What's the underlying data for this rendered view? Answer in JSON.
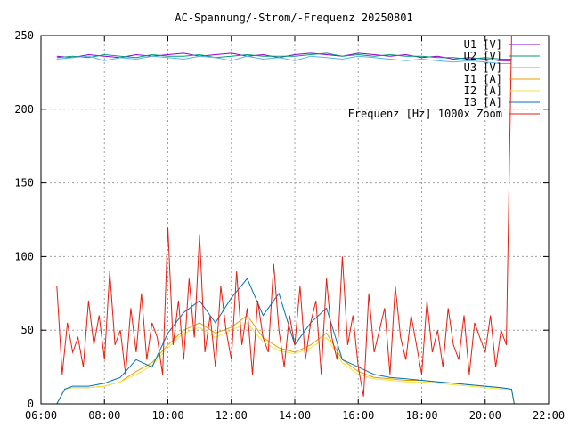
{
  "chart_data": {
    "type": "line",
    "title": "AC-Spannung/-Strom/-Frequenz 20250801",
    "xlabel": "",
    "ylabel": "",
    "xlim": [
      "06:00",
      "22:00"
    ],
    "ylim": [
      0,
      250
    ],
    "x_ticks": [
      "06:00",
      "08:00",
      "10:00",
      "12:00",
      "14:00",
      "16:00",
      "18:00",
      "20:00",
      "22:00"
    ],
    "y_ticks": [
      "0",
      "50",
      "100",
      "150",
      "200",
      "250"
    ],
    "grid": true,
    "legend_position": "top-right",
    "series": [
      {
        "name": "U1 [V]",
        "color": "#9400d3",
        "x": [
          "06:30",
          "07:00",
          "07:30",
          "08:00",
          "08:30",
          "09:00",
          "09:30",
          "10:00",
          "10:30",
          "11:00",
          "11:30",
          "12:00",
          "12:30",
          "13:00",
          "13:30",
          "14:00",
          "14:30",
          "15:00",
          "15:30",
          "16:00",
          "16:30",
          "17:00",
          "17:30",
          "18:00",
          "18:30",
          "19:00",
          "19:30",
          "20:00",
          "20:30",
          "20:50"
        ],
        "values": [
          236,
          235,
          237,
          236,
          235,
          237,
          236,
          237,
          238,
          236,
          237,
          238,
          236,
          237,
          235,
          237,
          238,
          237,
          236,
          238,
          237,
          236,
          237,
          235,
          236,
          234,
          235,
          234,
          233,
          233
        ]
      },
      {
        "name": "U2 [V]",
        "color": "#009e73",
        "x": [
          "06:30",
          "07:00",
          "07:30",
          "08:00",
          "08:30",
          "09:00",
          "09:30",
          "10:00",
          "10:30",
          "11:00",
          "11:30",
          "12:00",
          "12:30",
          "13:00",
          "13:30",
          "14:00",
          "14:30",
          "15:00",
          "15:30",
          "16:00",
          "16:30",
          "17:00",
          "17:30",
          "18:00",
          "18:30",
          "19:00",
          "19:30",
          "20:00",
          "20:30",
          "20:50"
        ],
        "values": [
          235,
          236,
          235,
          237,
          236,
          235,
          237,
          236,
          236,
          237,
          235,
          236,
          237,
          236,
          236,
          236,
          237,
          238,
          236,
          237,
          236,
          237,
          236,
          236,
          235,
          235,
          234,
          235,
          234,
          234
        ]
      },
      {
        "name": "U3 [V]",
        "color": "#56b4e9",
        "x": [
          "06:30",
          "07:00",
          "07:30",
          "08:00",
          "08:30",
          "09:00",
          "09:30",
          "10:00",
          "10:30",
          "11:00",
          "11:30",
          "12:00",
          "12:30",
          "13:00",
          "13:30",
          "14:00",
          "14:30",
          "15:00",
          "15:30",
          "16:00",
          "16:30",
          "17:00",
          "17:30",
          "18:00",
          "18:30",
          "19:00",
          "19:30",
          "20:00",
          "20:30",
          "20:50"
        ],
        "values": [
          234,
          235,
          236,
          233,
          235,
          234,
          236,
          235,
          234,
          236,
          235,
          233,
          236,
          234,
          235,
          233,
          236,
          235,
          234,
          236,
          235,
          234,
          233,
          234,
          233,
          232,
          233,
          232,
          231,
          231
        ]
      },
      {
        "name": "I1 [A]",
        "color": "#e69f00",
        "x": [
          "06:30",
          "06:45",
          "07:00",
          "07:30",
          "08:00",
          "08:30",
          "09:00",
          "09:30",
          "10:00",
          "10:30",
          "11:00",
          "11:30",
          "12:00",
          "12:30",
          "13:00",
          "13:30",
          "14:00",
          "14:30",
          "15:00",
          "15:30",
          "16:00",
          "16:30",
          "17:00",
          "17:30",
          "18:00",
          "18:30",
          "19:00",
          "19:30",
          "20:00",
          "20:30",
          "20:50",
          "20:55"
        ],
        "values": [
          0,
          10,
          11,
          11,
          12,
          15,
          22,
          28,
          40,
          50,
          55,
          48,
          52,
          60,
          45,
          38,
          35,
          40,
          48,
          30,
          22,
          18,
          17,
          16,
          16,
          15,
          14,
          13,
          12,
          11,
          10,
          0
        ]
      },
      {
        "name": "I2 [A]",
        "color": "#f0e442",
        "x": [
          "06:30",
          "06:45",
          "07:00",
          "07:30",
          "08:00",
          "08:30",
          "09:00",
          "09:30",
          "10:00",
          "10:30",
          "11:00",
          "11:30",
          "12:00",
          "12:30",
          "13:00",
          "13:30",
          "14:00",
          "14:30",
          "15:00",
          "15:30",
          "16:00",
          "16:30",
          "17:00",
          "17:30",
          "18:00",
          "18:30",
          "19:00",
          "19:30",
          "20:00",
          "20:30",
          "20:50",
          "20:55"
        ],
        "values": [
          0,
          10,
          11,
          11,
          12,
          15,
          20,
          26,
          38,
          48,
          52,
          45,
          50,
          55,
          42,
          36,
          34,
          38,
          45,
          28,
          20,
          17,
          16,
          15,
          15,
          14,
          13,
          12,
          11,
          10,
          10,
          0
        ]
      },
      {
        "name": "I3 [A]",
        "color": "#0072b2",
        "x": [
          "06:30",
          "06:45",
          "07:00",
          "07:30",
          "08:00",
          "08:30",
          "09:00",
          "09:30",
          "10:00",
          "10:30",
          "11:00",
          "11:30",
          "12:00",
          "12:30",
          "13:00",
          "13:30",
          "14:00",
          "14:30",
          "15:00",
          "15:30",
          "16:00",
          "16:30",
          "17:00",
          "17:30",
          "18:00",
          "18:30",
          "19:00",
          "19:30",
          "20:00",
          "20:30",
          "20:50",
          "20:55"
        ],
        "values": [
          0,
          10,
          12,
          12,
          14,
          18,
          30,
          25,
          48,
          62,
          70,
          55,
          72,
          85,
          60,
          75,
          40,
          55,
          65,
          30,
          25,
          20,
          18,
          17,
          16,
          15,
          14,
          13,
          12,
          11,
          10,
          0
        ]
      },
      {
        "name": "Frequenz [Hz] 1000x Zoom",
        "color": "#e51e10",
        "x": [
          "06:30",
          "06:40",
          "06:50",
          "07:00",
          "07:10",
          "07:20",
          "07:30",
          "07:40",
          "07:50",
          "08:00",
          "08:10",
          "08:20",
          "08:30",
          "08:40",
          "08:50",
          "09:00",
          "09:10",
          "09:20",
          "09:30",
          "09:40",
          "09:50",
          "10:00",
          "10:10",
          "10:20",
          "10:30",
          "10:40",
          "10:50",
          "11:00",
          "11:10",
          "11:20",
          "11:30",
          "11:40",
          "11:50",
          "12:00",
          "12:10",
          "12:20",
          "12:30",
          "12:40",
          "12:50",
          "13:00",
          "13:10",
          "13:20",
          "13:30",
          "13:40",
          "13:50",
          "14:00",
          "14:10",
          "14:20",
          "14:30",
          "14:40",
          "14:50",
          "15:00",
          "15:10",
          "15:20",
          "15:30",
          "15:40",
          "15:50",
          "16:00",
          "16:10",
          "16:20",
          "16:30",
          "16:40",
          "16:50",
          "17:00",
          "17:10",
          "17:20",
          "17:30",
          "17:40",
          "17:50",
          "18:00",
          "18:10",
          "18:20",
          "18:30",
          "18:40",
          "18:50",
          "19:00",
          "19:10",
          "19:20",
          "19:30",
          "19:40",
          "19:50",
          "20:00",
          "20:10",
          "20:20",
          "20:30",
          "20:40",
          "20:50"
        ],
        "values": [
          80,
          20,
          55,
          35,
          45,
          25,
          70,
          40,
          60,
          30,
          90,
          40,
          50,
          20,
          65,
          35,
          75,
          30,
          55,
          45,
          20,
          120,
          40,
          70,
          30,
          85,
          45,
          115,
          35,
          60,
          25,
          80,
          50,
          30,
          90,
          40,
          65,
          20,
          70,
          45,
          35,
          95,
          50,
          25,
          60,
          40,
          80,
          30,
          55,
          70,
          20,
          85,
          45,
          30,
          100,
          40,
          60,
          25,
          5,
          75,
          35,
          50,
          65,
          20,
          80,
          45,
          30,
          60,
          40,
          20,
          70,
          35,
          50,
          25,
          65,
          40,
          30,
          60,
          20,
          55,
          45,
          35,
          60,
          25,
          50,
          40,
          255
        ]
      }
    ]
  }
}
